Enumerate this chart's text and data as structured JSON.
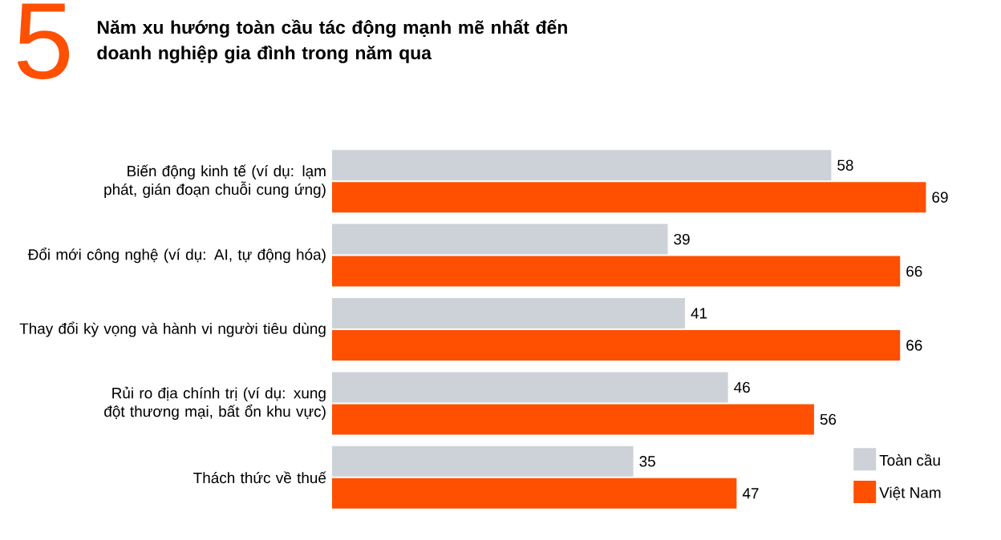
{
  "chart_data": {
    "type": "bar",
    "orientation": "horizontal",
    "title": "Năm xu hướng toàn cầu tác động mạnh mẽ nhất đến doanh nghiệp gia đình trong năm qua",
    "annotations": [
      "5"
    ],
    "categories": [
      "Biến động kinh tế (ví dụ: lạm phát, gián đoạn chuỗi cung ứng)",
      "Đổi mới công nghệ (ví dụ: AI, tự động hóa)",
      "Thay đổi kỳ vọng và hành vi người tiêu dùng",
      "Rủi ro địa chính trị (ví dụ: xung đột thương mại, bất ổn khu vực)",
      "Thách thức về thuế"
    ],
    "series": [
      {
        "name": "Toàn cầu",
        "color": "#cdd1d8",
        "values": [
          58,
          39,
          41,
          46,
          35
        ]
      },
      {
        "name": "Việt Nam",
        "color": "#fe5000",
        "values": [
          69,
          66,
          66,
          56,
          47
        ]
      }
    ],
    "data_labels": true,
    "legend": "bottom right"
  }
}
